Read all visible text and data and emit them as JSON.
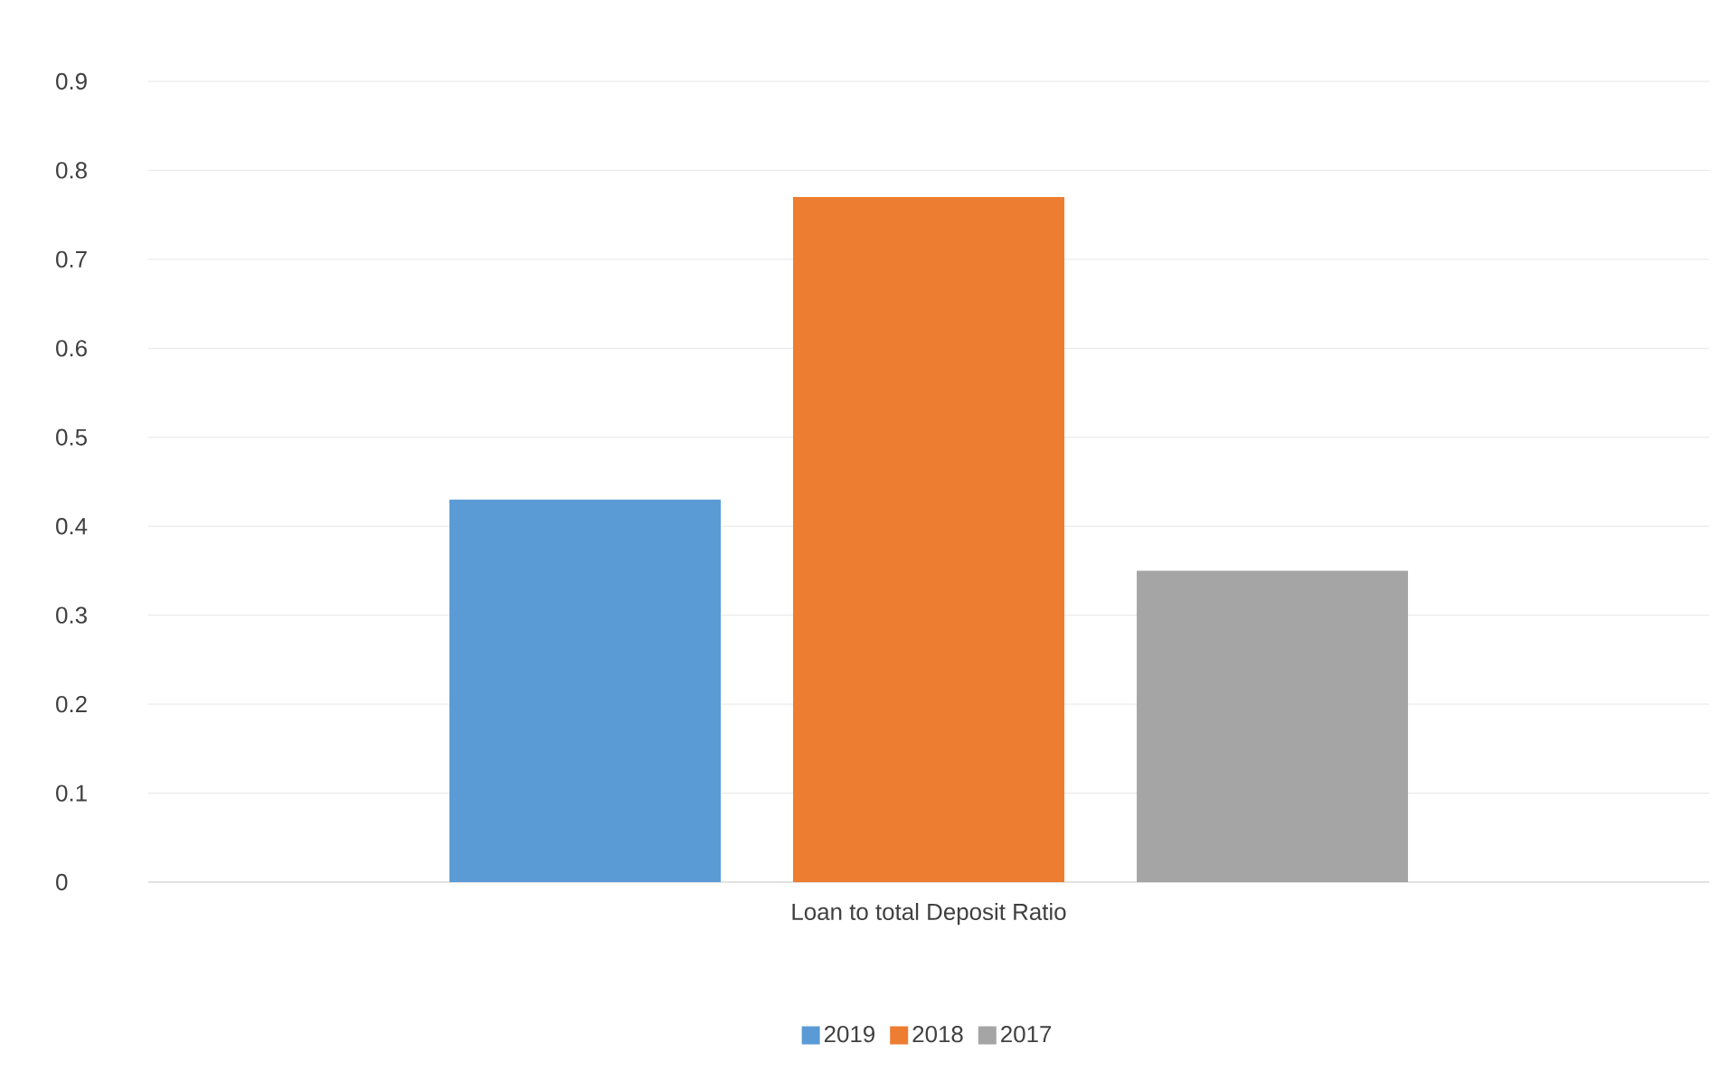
{
  "chart_data": {
    "type": "bar",
    "categories": [
      "Loan to total Deposit Ratio"
    ],
    "series": [
      {
        "name": "2019",
        "color": "#5b9bd5",
        "values": [
          0.43
        ]
      },
      {
        "name": "2018",
        "color": "#ed7d31",
        "values": [
          0.77
        ]
      },
      {
        "name": "2017",
        "color": "#a5a5a5",
        "values": [
          0.35
        ]
      }
    ],
    "ylim": [
      0,
      0.9
    ],
    "yticks": [
      0,
      0.1,
      0.2,
      0.3,
      0.4,
      0.5,
      0.6,
      0.7,
      0.8,
      0.9
    ],
    "grid": "y",
    "legend": "bottom"
  }
}
